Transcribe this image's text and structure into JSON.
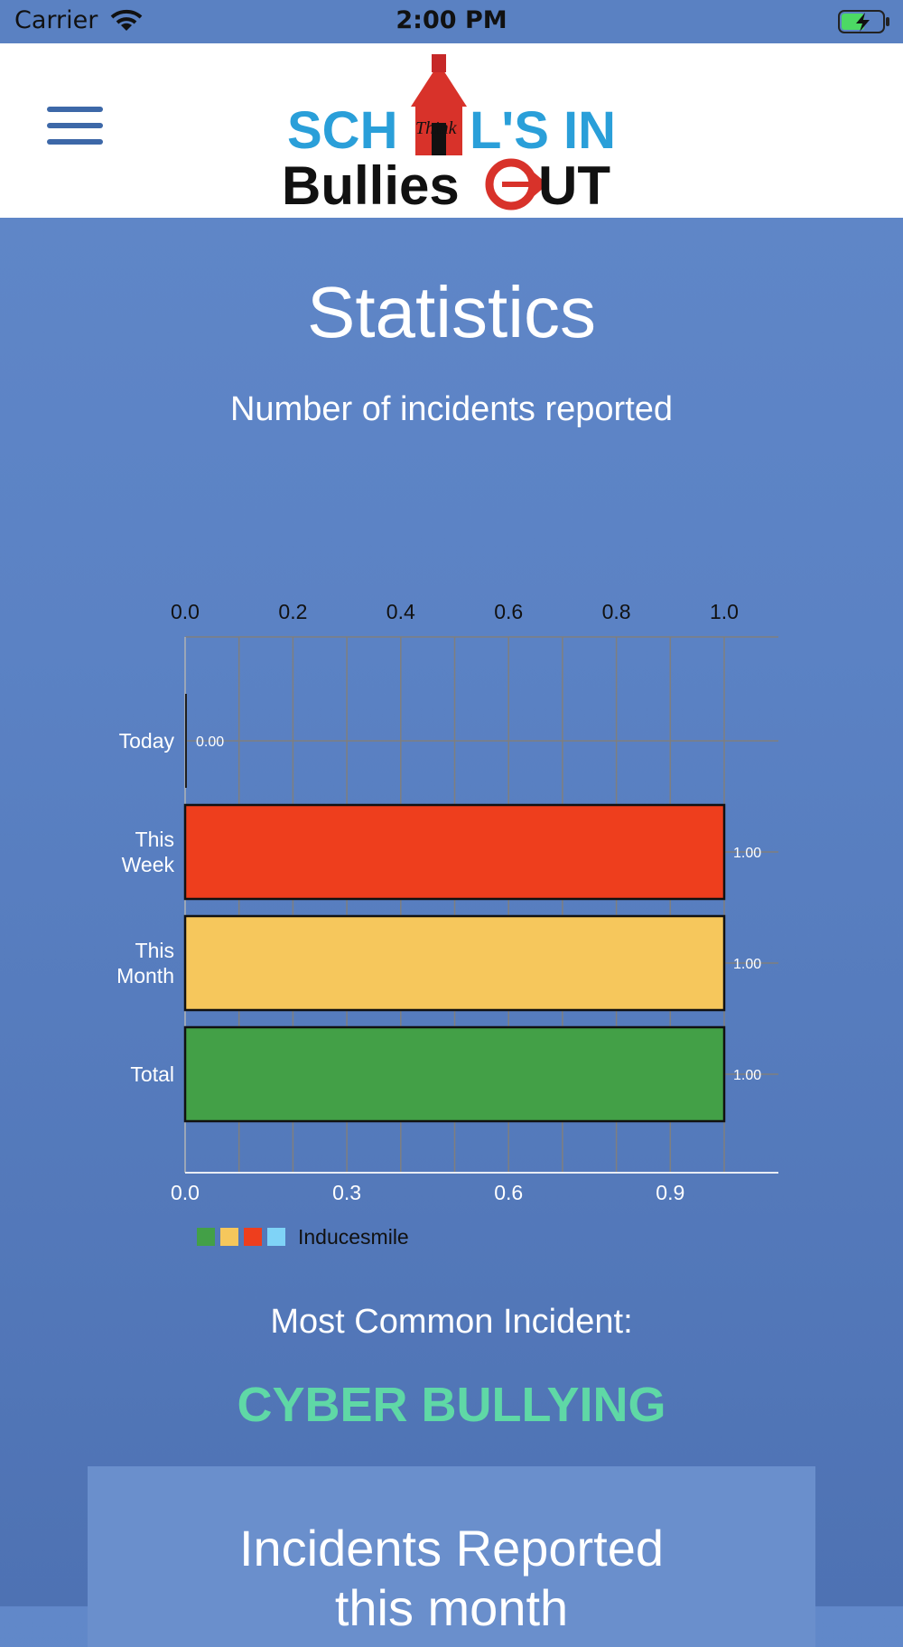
{
  "status_bar": {
    "carrier": "Carrier",
    "time": "2:00 PM",
    "icons": [
      "wifi-icon",
      "battery-charging-icon"
    ]
  },
  "header": {
    "logo_line1": "SCHOOL'S IN",
    "logo_line2": "Bullies OUT",
    "logo_script": "Think"
  },
  "page": {
    "title": "Statistics",
    "subtitle": "Number of incidents reported"
  },
  "chart_data": {
    "type": "bar",
    "orientation": "horizontal",
    "categories": [
      "Today",
      "This Week",
      "This Month",
      "Total"
    ],
    "values": [
      0,
      1,
      1,
      1
    ],
    "value_labels": [
      "0.00",
      "1.00",
      "1.00",
      "1.00"
    ],
    "colors": [
      "#1f1f1f",
      "#ee3e1d",
      "#f6c75c",
      "#43a047"
    ],
    "top_axis_ticks": [
      "0.0",
      "0.2",
      "0.4",
      "0.6",
      "0.8",
      "1.0"
    ],
    "bottom_axis_ticks": [
      "0.0",
      "0.3",
      "0.6",
      "0.9"
    ],
    "xlim": [
      0,
      1.1
    ],
    "grid": true,
    "legend": {
      "label": "Inducesmile",
      "swatches": [
        "#43a047",
        "#f6c75c",
        "#ee3e1d",
        "#7fd3f7"
      ],
      "placement": "bottom-left"
    }
  },
  "summary": {
    "common_label": "Most Common Incident:",
    "common_value": "CYBER BULLYING",
    "card_title_line1": "Incidents Reported",
    "card_title_line2": "this month"
  }
}
